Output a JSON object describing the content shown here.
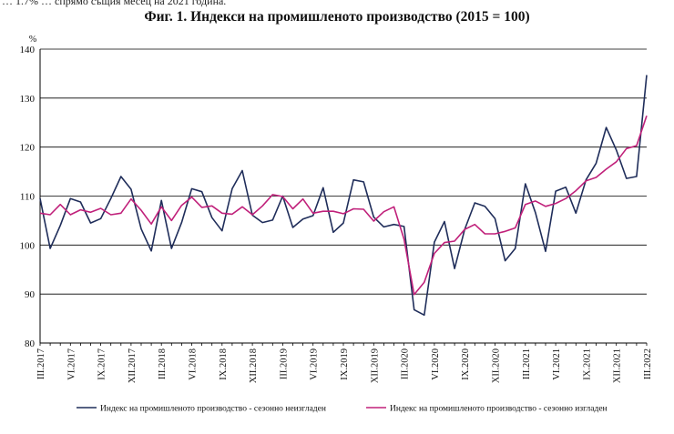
{
  "top_fragment": "… 1.7% … спрямо същия месец на 2021 година.",
  "chart_data": {
    "type": "line",
    "title": "Фиг. 1. Индекси на промишленото производство (2015 = 100)",
    "ylabel": "%",
    "ylim": [
      80,
      140
    ],
    "yticks": [
      80,
      90,
      100,
      110,
      120,
      130,
      140
    ],
    "grid": true,
    "legend_position": "bottom",
    "x_tick_labels": [
      "III.2017",
      "VI.2017",
      "IX.2017",
      "XII.2017",
      "III.2018",
      "VI.2018",
      "IX.2018",
      "XII.2018",
      "III.2019",
      "VI.2019",
      "IX.2019",
      "XII.2019",
      "III.2020",
      "VI.2020",
      "IX.2020",
      "XII.2020",
      "III.2021",
      "VI.2021",
      "IX.2021",
      "XII.2021",
      "III.2022"
    ],
    "series": [
      {
        "name": "Индекс на промишленото производство - сезонно неизгладен",
        "color": "#1f2d5a",
        "values": [
          109.5,
          99.3,
          104.0,
          109.5,
          108.8,
          104.5,
          105.4,
          109.5,
          114.0,
          111.4,
          103.3,
          98.8,
          109.1,
          99.3,
          104.6,
          111.5,
          110.9,
          105.6,
          102.9,
          111.5,
          115.2,
          106.1,
          104.6,
          105.1,
          110.0,
          103.6,
          105.3,
          106.0,
          111.7,
          102.6,
          104.5,
          113.3,
          112.9,
          105.7,
          103.7,
          104.2,
          103.8,
          86.8,
          85.7,
          100.6,
          104.8,
          95.2,
          103.2,
          108.6,
          107.9,
          105.4,
          96.8,
          99.3,
          112.5,
          106.6,
          98.7,
          111.0,
          111.8,
          106.5,
          113.3,
          116.7,
          124.0,
          119.4,
          113.6,
          114.0,
          134.7
        ]
      },
      {
        "name": "Индекс на промишленото производство - сезонно изгладен",
        "color": "#c0207a",
        "values": [
          106.5,
          106.2,
          108.3,
          106.2,
          107.2,
          106.7,
          107.5,
          106.2,
          106.5,
          109.4,
          107.1,
          104.3,
          107.8,
          105.0,
          108.1,
          109.8,
          107.7,
          108.0,
          106.5,
          106.3,
          107.8,
          106.2,
          108.0,
          110.3,
          109.9,
          107.4,
          109.4,
          106.5,
          106.9,
          106.9,
          106.4,
          107.4,
          107.3,
          104.9,
          106.8,
          107.8,
          101.2,
          89.9,
          92.4,
          98.3,
          100.5,
          100.8,
          103.2,
          104.2,
          102.3,
          102.3,
          102.8,
          103.5,
          108.3,
          109.0,
          107.9,
          108.5,
          109.5,
          111.1,
          113.1,
          113.8,
          115.5,
          117.0,
          119.7,
          120.3,
          126.4
        ]
      }
    ]
  }
}
